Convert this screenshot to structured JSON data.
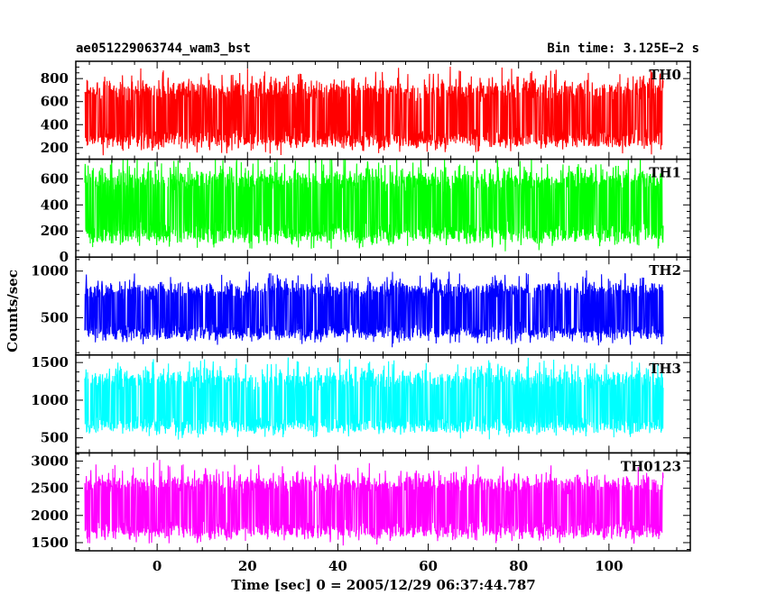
{
  "header": {
    "left_title": "ae051229063744_wam3_bst",
    "right_title": "Bin time: 3.125E−2 s"
  },
  "chart_data": {
    "type": "line",
    "xlabel": "Time [sec] 0 = 2005/12/29 06:37:44.787",
    "ylabel": "Counts/sec",
    "xlim": [
      -18,
      118
    ],
    "data_x_range": [
      -16,
      112
    ],
    "xticks": [
      0,
      20,
      40,
      60,
      80,
      100
    ],
    "x_tick_labels": [
      "0",
      "20",
      "40",
      "60",
      "80",
      "100"
    ],
    "panels": [
      {
        "name": "TH0",
        "color": "#ff0000",
        "ylim": [
          100,
          950
        ],
        "yticks": [
          200,
          400,
          600,
          800
        ],
        "y_tick_labels": [
          "200",
          "400",
          "600",
          "800"
        ],
        "band_low": 170,
        "band_high": 800,
        "mean": 470
      },
      {
        "name": "TH1",
        "color": "#00ff00",
        "ylim": [
          0,
          750
        ],
        "yticks": [
          0,
          200,
          400,
          600
        ],
        "y_tick_labels": [
          "0",
          "200",
          "400",
          "600"
        ],
        "band_low": 80,
        "band_high": 690,
        "mean": 380
      },
      {
        "name": "TH2",
        "color": "#0000ff",
        "ylim": [
          100,
          1150
        ],
        "yticks": [
          500,
          1000
        ],
        "y_tick_labels": [
          "500",
          "1000"
        ],
        "band_low": 230,
        "band_high": 900,
        "mean": 560
      },
      {
        "name": "TH3",
        "color": "#00ffff",
        "ylim": [
          300,
          1600
        ],
        "yticks": [
          500,
          1000,
          1500
        ],
        "y_tick_labels": [
          "500",
          "1000",
          "1500"
        ],
        "band_low": 520,
        "band_high": 1420,
        "mean": 950
      },
      {
        "name": "TH0123",
        "color": "#ff00ff",
        "ylim": [
          1350,
          3150
        ],
        "yticks": [
          1500,
          2000,
          2500,
          3000
        ],
        "y_tick_labels": [
          "1500",
          "2000",
          "2500",
          "3000"
        ],
        "band_low": 1520,
        "band_high": 2780,
        "mean": 2150
      }
    ]
  }
}
